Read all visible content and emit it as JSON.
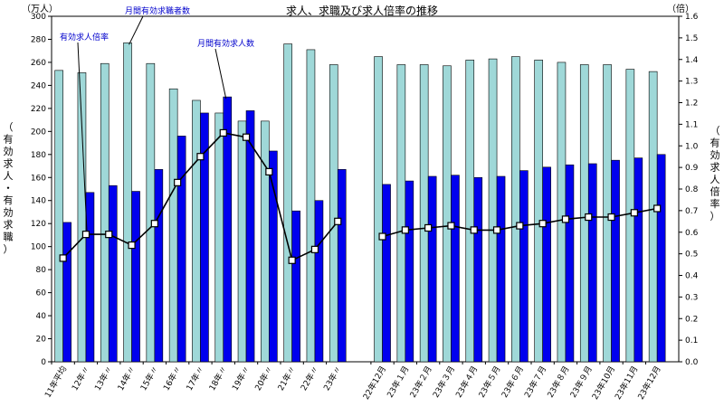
{
  "chart_data": {
    "type": "bar+line",
    "title": "求人、求職及び求人倍率の推移",
    "left_unit": "（万人）",
    "right_unit": "（倍）",
    "left_axis_label": "（有効求人・有効求職）",
    "right_axis_label": "（有効求人倍率）",
    "ylim_left": [
      0,
      300
    ],
    "ylim_right": [
      0,
      1.6
    ],
    "left_ticks": [
      "0",
      "20",
      "40",
      "60",
      "80",
      "100",
      "120",
      "140",
      "160",
      "180",
      "200",
      "220",
      "240",
      "260",
      "280",
      "300"
    ],
    "right_ticks": [
      "0.0",
      "0.1",
      "0.2",
      "0.3",
      "0.4",
      "0.5",
      "0.6",
      "0.7",
      "0.8",
      "0.9",
      "1.0",
      "1.1",
      "1.2",
      "1.3",
      "1.4",
      "1.5",
      "1.6"
    ],
    "grid": false,
    "categories": [
      "11年平均",
      "12年〃",
      "13年〃",
      "14年〃",
      "15年〃",
      "16年〃",
      "17年〃",
      "18年〃",
      "19年〃",
      "20年〃",
      "21年〃",
      "22年〃",
      "23年〃",
      "22年12月",
      "23年１月",
      "23年２月",
      "23年３月",
      "23年４月",
      "23年５月",
      "23年６月",
      "23年７月",
      "23年８月",
      "23年９月",
      "23年10月",
      "23年11月",
      "23年12月"
    ],
    "series": [
      {
        "name": "月間有効求職者数",
        "axis": "left",
        "color": "#9fd8d8",
        "values": [
          253,
          251,
          259,
          277,
          259,
          237,
          227,
          216,
          209,
          209,
          276,
          271,
          258,
          265,
          258,
          258,
          257,
          262,
          263,
          265,
          262,
          260,
          258,
          258,
          254,
          252
        ]
      },
      {
        "name": "月間有効求人数",
        "axis": "left",
        "color": "#0000ee",
        "values": [
          121,
          147,
          153,
          148,
          167,
          196,
          216,
          230,
          218,
          183,
          131,
          140,
          167,
          154,
          157,
          161,
          162,
          160,
          161,
          166,
          169,
          171,
          172,
          175,
          177,
          180
        ]
      },
      {
        "name": "有効求人倍率",
        "axis": "right",
        "color": "#000000",
        "values": [
          0.48,
          0.59,
          0.59,
          0.54,
          0.64,
          0.83,
          0.95,
          1.06,
          1.04,
          0.88,
          0.47,
          0.52,
          0.65,
          0.58,
          0.61,
          0.62,
          0.63,
          0.61,
          0.61,
          0.63,
          0.64,
          0.66,
          0.67,
          0.67,
          0.69,
          0.71
        ]
      }
    ],
    "annotations": [
      {
        "text": "月間有効求職者数",
        "series": 0
      },
      {
        "text": "有効求人倍率",
        "series": 2
      },
      {
        "text": "月間有効求人数",
        "series": 1
      }
    ]
  }
}
